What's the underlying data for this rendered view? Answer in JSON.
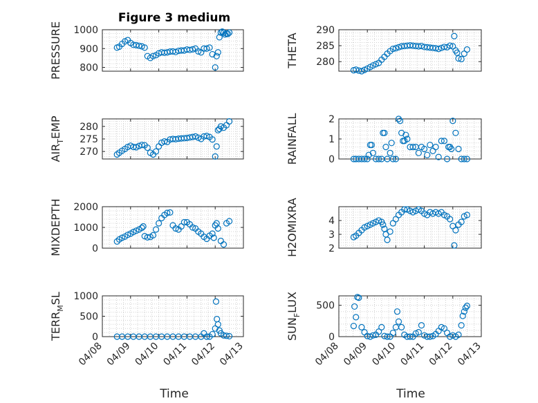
{
  "figure": {
    "title": "Figure 3 medium",
    "marker_color": "#0072BD",
    "x_tick_labels": [
      "04/08",
      "04/09",
      "04/10",
      "04/11",
      "04/12",
      "04/13"
    ],
    "xlabel": "Time"
  },
  "chart_data": [
    {
      "type": "scatter",
      "ylabel": "PRESSURE",
      "ylim": [
        780,
        1000
      ],
      "yticks": [
        800,
        900,
        1000
      ],
      "xlim": [
        0,
        5
      ],
      "x": [
        0.52,
        0.6,
        0.7,
        0.8,
        0.9,
        1.0,
        1.1,
        1.2,
        1.3,
        1.4,
        1.5,
        1.6,
        1.7,
        1.8,
        1.9,
        2.0,
        2.1,
        2.2,
        2.3,
        2.4,
        2.5,
        2.6,
        2.7,
        2.8,
        2.9,
        3.0,
        3.1,
        3.2,
        3.3,
        3.4,
        3.5,
        3.6,
        3.7,
        3.8,
        3.9,
        4.0,
        4.05,
        4.1,
        4.15,
        4.2,
        4.25,
        4.3,
        4.35,
        4.4,
        4.45,
        4.5
      ],
      "y": [
        905,
        910,
        925,
        938,
        945,
        930,
        920,
        918,
        915,
        912,
        905,
        860,
        850,
        860,
        865,
        875,
        880,
        878,
        880,
        884,
        885,
        882,
        888,
        890,
        890,
        895,
        893,
        896,
        900,
        885,
        880,
        900,
        900,
        905,
        870,
        800,
        860,
        880,
        960,
        985,
        990,
        985,
        975,
        980,
        978,
        985
      ]
    },
    {
      "type": "scatter",
      "ylabel": "THETA",
      "ylim": [
        277,
        290
      ],
      "yticks": [
        280,
        285,
        290
      ],
      "xlim": [
        0,
        5
      ],
      "x": [
        0.52,
        0.6,
        0.7,
        0.8,
        0.9,
        1.0,
        1.1,
        1.2,
        1.3,
        1.4,
        1.5,
        1.6,
        1.7,
        1.8,
        1.9,
        2.0,
        2.1,
        2.2,
        2.3,
        2.4,
        2.5,
        2.6,
        2.7,
        2.8,
        2.9,
        3.0,
        3.1,
        3.2,
        3.3,
        3.4,
        3.5,
        3.6,
        3.7,
        3.8,
        3.9,
        4.0,
        4.05,
        4.1,
        4.15,
        4.2,
        4.3,
        4.4,
        4.5
      ],
      "y": [
        277.3,
        277.5,
        277.2,
        277.0,
        277.4,
        277.8,
        278.3,
        278.8,
        279.2,
        279.6,
        280.6,
        281.5,
        282.5,
        283.3,
        284.0,
        284.2,
        284.5,
        284.8,
        284.9,
        285.0,
        285.1,
        285.0,
        284.9,
        284.8,
        284.9,
        284.6,
        284.5,
        284.4,
        284.3,
        284.2,
        284.0,
        284.3,
        284.6,
        284.5,
        285.0,
        284.8,
        288.0,
        283.5,
        282.8,
        281.0,
        280.8,
        282.5,
        283.8
      ]
    },
    {
      "type": "scatter",
      "ylabel": "AIR_TEMP",
      "ylim": [
        267,
        283
      ],
      "yticks": [
        270,
        275,
        280
      ],
      "xlim": [
        0,
        5
      ],
      "x": [
        0.52,
        0.6,
        0.7,
        0.8,
        0.9,
        1.0,
        1.1,
        1.2,
        1.3,
        1.4,
        1.5,
        1.6,
        1.7,
        1.8,
        1.9,
        2.0,
        2.1,
        2.2,
        2.3,
        2.4,
        2.5,
        2.6,
        2.7,
        2.8,
        2.9,
        3.0,
        3.1,
        3.2,
        3.3,
        3.4,
        3.5,
        3.6,
        3.7,
        3.8,
        3.9,
        4.0,
        4.05,
        4.1,
        4.15,
        4.2,
        4.3,
        4.4,
        4.5
      ],
      "y": [
        268.8,
        269.5,
        270.3,
        271.0,
        271.8,
        272.3,
        271.8,
        271.7,
        272.2,
        272.6,
        272.5,
        271.5,
        269.5,
        268.8,
        270.0,
        272.0,
        273.5,
        274.0,
        273.8,
        274.8,
        275.0,
        274.9,
        275.1,
        275.2,
        275.3,
        275.4,
        275.6,
        275.8,
        276.0,
        275.5,
        275.0,
        276.0,
        276.2,
        275.8,
        274.8,
        268.0,
        272.0,
        278.5,
        279.0,
        280.0,
        279.5,
        280.5,
        282.0
      ]
    },
    {
      "type": "scatter",
      "ylabel": "RAINFALL",
      "ylim": [
        0,
        2
      ],
      "yticks": [
        0,
        1,
        2
      ],
      "xlim": [
        0,
        5
      ],
      "x": [
        0.52,
        0.6,
        0.7,
        0.8,
        0.9,
        1.0,
        1.05,
        1.1,
        1.15,
        1.2,
        1.3,
        1.4,
        1.5,
        1.55,
        1.6,
        1.65,
        1.7,
        1.8,
        1.85,
        1.9,
        2.0,
        2.1,
        2.15,
        2.2,
        2.25,
        2.3,
        2.35,
        2.4,
        2.5,
        2.6,
        2.7,
        2.8,
        2.9,
        3.0,
        3.1,
        3.2,
        3.3,
        3.4,
        3.5,
        3.6,
        3.7,
        3.8,
        3.85,
        3.9,
        3.95,
        4.0,
        4.1,
        4.2,
        4.3,
        4.4,
        4.5
      ],
      "y": [
        0,
        0,
        0,
        0,
        0,
        0,
        0.2,
        0.7,
        0.7,
        0.3,
        0,
        0,
        0,
        1.3,
        1.3,
        0.6,
        0,
        0.3,
        0.8,
        0,
        0,
        2.0,
        1.9,
        1.3,
        0.9,
        0.9,
        1.2,
        1.0,
        0.6,
        0.6,
        0.6,
        0.3,
        0.6,
        0.5,
        0.2,
        0.7,
        0.4,
        0.6,
        0.1,
        0.9,
        0.9,
        0,
        0.6,
        0.6,
        0.5,
        1.9,
        1.3,
        0.5,
        0,
        0,
        0
      ]
    },
    {
      "type": "scatter",
      "ylabel": "MIXDEPTH",
      "ylim": [
        0,
        2000
      ],
      "yticks": [
        0,
        1000,
        2000
      ],
      "xlim": [
        0,
        5
      ],
      "x": [
        0.52,
        0.6,
        0.7,
        0.8,
        0.9,
        1.0,
        1.1,
        1.2,
        1.3,
        1.4,
        1.45,
        1.5,
        1.6,
        1.7,
        1.8,
        1.9,
        2.0,
        2.1,
        2.2,
        2.3,
        2.4,
        2.5,
        2.6,
        2.7,
        2.8,
        2.9,
        3.0,
        3.1,
        3.2,
        3.3,
        3.4,
        3.5,
        3.6,
        3.7,
        3.8,
        3.9,
        3.95,
        4.0,
        4.05,
        4.1,
        4.2,
        4.3,
        4.4,
        4.5
      ],
      "y": [
        320,
        420,
        500,
        560,
        640,
        700,
        780,
        840,
        900,
        980,
        1050,
        580,
        520,
        540,
        620,
        900,
        1200,
        1450,
        1600,
        1700,
        1720,
        1100,
        950,
        900,
        1050,
        1250,
        1250,
        1150,
        1000,
        950,
        800,
        700,
        550,
        450,
        600,
        700,
        500,
        1100,
        1200,
        950,
        350,
        180,
        1200,
        1300
      ]
    },
    {
      "type": "scatter",
      "ylabel": "H2OMIXRA",
      "ylim": [
        2,
        5
      ],
      "yticks": [
        2,
        3,
        4
      ],
      "xlim": [
        0,
        5
      ],
      "x": [
        0.52,
        0.6,
        0.7,
        0.8,
        0.9,
        1.0,
        1.1,
        1.2,
        1.3,
        1.4,
        1.5,
        1.55,
        1.6,
        1.65,
        1.7,
        1.8,
        1.9,
        2.0,
        2.1,
        2.2,
        2.3,
        2.4,
        2.5,
        2.6,
        2.7,
        2.8,
        2.9,
        3.0,
        3.1,
        3.2,
        3.3,
        3.4,
        3.5,
        3.6,
        3.7,
        3.8,
        3.9,
        4.0,
        4.05,
        4.1,
        4.2,
        4.3,
        4.4,
        4.5
      ],
      "y": [
        2.8,
        2.9,
        3.1,
        3.3,
        3.5,
        3.6,
        3.7,
        3.8,
        3.9,
        4.0,
        3.9,
        3.7,
        3.4,
        3.0,
        2.6,
        3.2,
        3.8,
        4.1,
        4.4,
        4.6,
        4.8,
        4.8,
        4.7,
        4.6,
        4.7,
        4.8,
        4.7,
        4.5,
        4.4,
        4.6,
        4.5,
        4.6,
        4.5,
        4.6,
        4.4,
        4.3,
        4.1,
        3.6,
        2.2,
        3.3,
        3.7,
        3.9,
        4.3,
        4.4
      ]
    },
    {
      "type": "scatter",
      "ylabel": "TERR_MSL",
      "ylim": [
        0,
        1000
      ],
      "yticks": [
        0,
        500,
        1000
      ],
      "xlim": [
        0,
        5
      ],
      "x": [
        0.52,
        0.7,
        0.9,
        1.1,
        1.3,
        1.5,
        1.7,
        1.9,
        2.1,
        2.3,
        2.5,
        2.7,
        2.9,
        3.1,
        3.3,
        3.5,
        3.6,
        3.7,
        3.8,
        3.9,
        4.0,
        4.03,
        4.06,
        4.1,
        4.15,
        4.2,
        4.3,
        4.4,
        4.5
      ],
      "y": [
        0,
        0,
        0,
        0,
        0,
        0,
        0,
        0,
        0,
        0,
        0,
        0,
        0,
        0,
        0,
        0,
        80,
        0,
        0,
        60,
        200,
        860,
        430,
        300,
        150,
        80,
        30,
        20,
        10
      ]
    },
    {
      "type": "scatter",
      "ylabel": "SUN_FLUX",
      "ylim": [
        0,
        650
      ],
      "yticks": [
        0,
        500
      ],
      "xlim": [
        0,
        5
      ],
      "x": [
        0.52,
        0.55,
        0.6,
        0.65,
        0.7,
        0.8,
        0.9,
        1.0,
        1.1,
        1.2,
        1.3,
        1.4,
        1.5,
        1.6,
        1.7,
        1.8,
        1.9,
        2.0,
        2.05,
        2.1,
        2.2,
        2.3,
        2.4,
        2.5,
        2.6,
        2.7,
        2.8,
        2.9,
        3.0,
        3.1,
        3.2,
        3.3,
        3.4,
        3.5,
        3.6,
        3.7,
        3.8,
        3.9,
        4.0,
        4.1,
        4.2,
        4.3,
        4.35,
        4.4,
        4.45,
        4.5
      ],
      "y": [
        170,
        480,
        310,
        630,
        620,
        150,
        70,
        10,
        0,
        20,
        30,
        80,
        150,
        10,
        0,
        0,
        60,
        150,
        400,
        240,
        150,
        30,
        0,
        0,
        0,
        50,
        70,
        180,
        20,
        0,
        0,
        10,
        40,
        90,
        150,
        130,
        60,
        0,
        20,
        0,
        30,
        180,
        330,
        400,
        460,
        490
      ]
    }
  ]
}
